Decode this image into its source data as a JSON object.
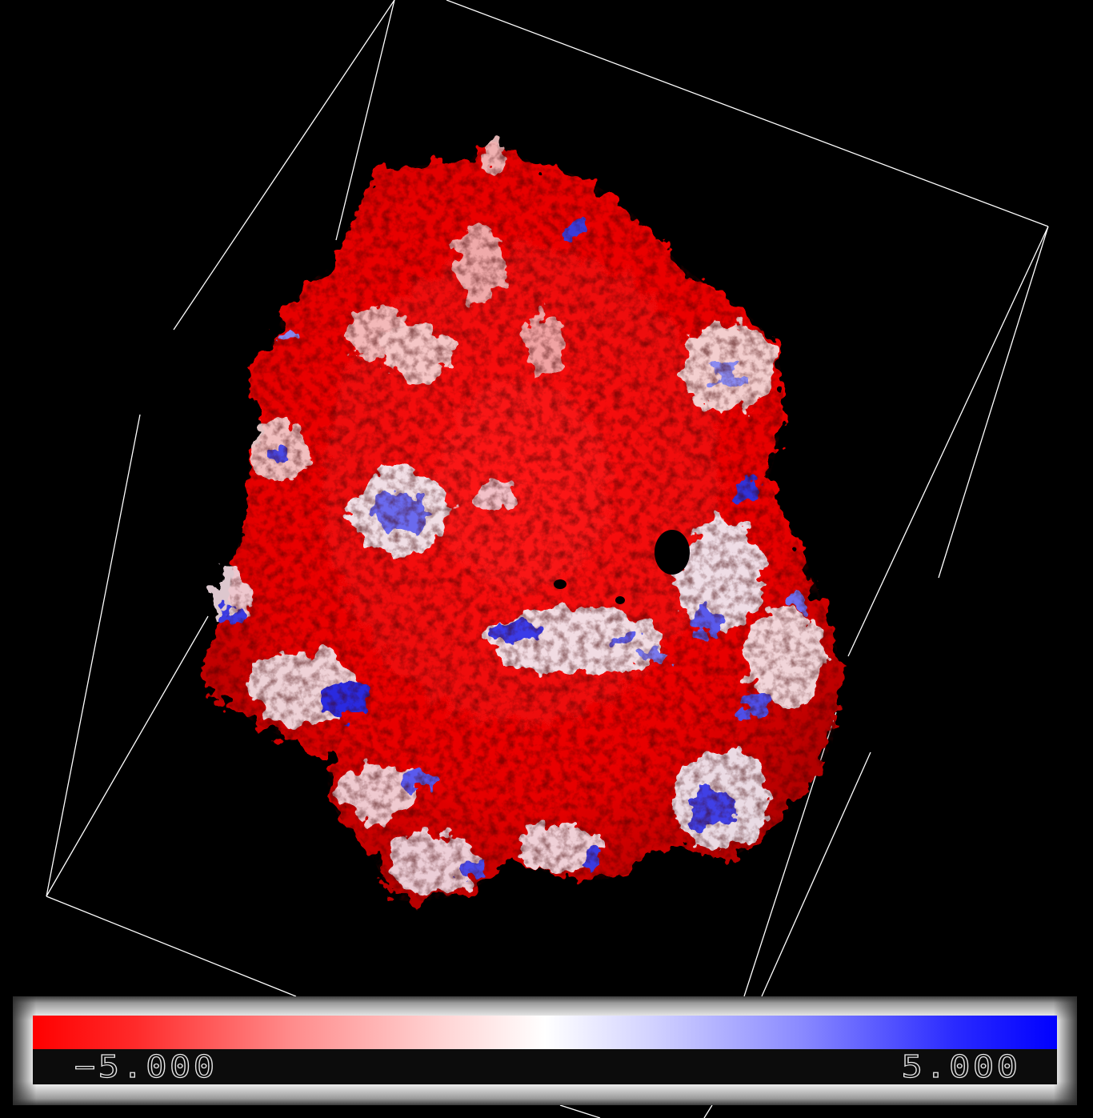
{
  "colorbar": {
    "min_label": "−5.000",
    "max_label": "5.000",
    "min_value": -5.0,
    "max_value": 5.0,
    "low_color": "#ff0000",
    "mid_color": "#ffffff",
    "high_color": "#0000ff"
  },
  "scene": {
    "background": "#000000",
    "box_color": "#ffffff",
    "surface_colors": [
      "#ff0000",
      "#e01010",
      "#ffffff",
      "#c8c8ff",
      "#4040ff",
      "#0000c8"
    ]
  }
}
